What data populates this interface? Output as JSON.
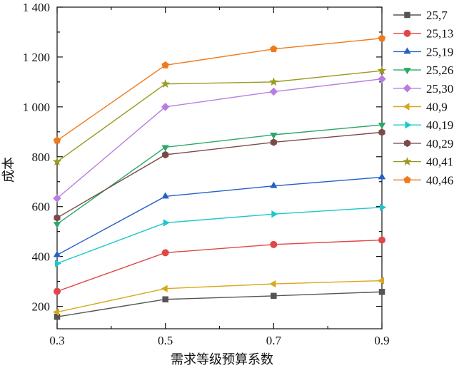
{
  "chart_data": {
    "type": "line",
    "title": "",
    "xlabel": "需求等级预算系数",
    "ylabel": "成本",
    "x": [
      0.3,
      0.5,
      0.7,
      0.9
    ],
    "x_tick_labels": [
      "0.3",
      "0.5",
      "0.7",
      "0.9"
    ],
    "x_ticks": [
      0.3,
      0.4,
      0.5,
      0.6,
      0.7,
      0.8,
      0.9
    ],
    "xlim": [
      0.3,
      0.9
    ],
    "y_tick_labels": [
      "200",
      "400",
      "600",
      "800",
      "1 000",
      "1 200",
      "1 400"
    ],
    "y_ticks": [
      200,
      300,
      400,
      500,
      600,
      700,
      800,
      900,
      1000,
      1100,
      1200,
      1300,
      1400
    ],
    "ylim": [
      110,
      1400
    ],
    "grid": false,
    "legend_position": "right-outside-top",
    "series": [
      {
        "name": "25,7",
        "color": "#555555",
        "marker": "square",
        "values": [
          158,
          228,
          242,
          258
        ]
      },
      {
        "name": "25,13",
        "color": "#e04848",
        "marker": "circle",
        "values": [
          260,
          415,
          448,
          466
        ]
      },
      {
        "name": "25,19",
        "color": "#2560c8",
        "marker": "triangle-up",
        "values": [
          406,
          641,
          683,
          718
        ]
      },
      {
        "name": "25,26",
        "color": "#2aa868",
        "marker": "triangle-down",
        "values": [
          530,
          838,
          888,
          928
        ]
      },
      {
        "name": "25,30",
        "color": "#b77ee0",
        "marker": "diamond",
        "values": [
          633,
          1000,
          1061,
          1112
        ]
      },
      {
        "name": "40,9",
        "color": "#d9a81a",
        "marker": "triangle-left",
        "values": [
          177,
          271,
          290,
          303
        ]
      },
      {
        "name": "40,19",
        "color": "#1ac8cc",
        "marker": "triangle-right",
        "values": [
          372,
          535,
          570,
          597
        ]
      },
      {
        "name": "40,29",
        "color": "#7a4a48",
        "marker": "hexagon",
        "values": [
          555,
          808,
          858,
          898
        ]
      },
      {
        "name": "40,41",
        "color": "#9a9a22",
        "marker": "star",
        "values": [
          780,
          1092,
          1100,
          1145
        ]
      },
      {
        "name": "40,46",
        "color": "#f07a1a",
        "marker": "pentagon",
        "values": [
          865,
          1167,
          1232,
          1275
        ]
      }
    ]
  }
}
